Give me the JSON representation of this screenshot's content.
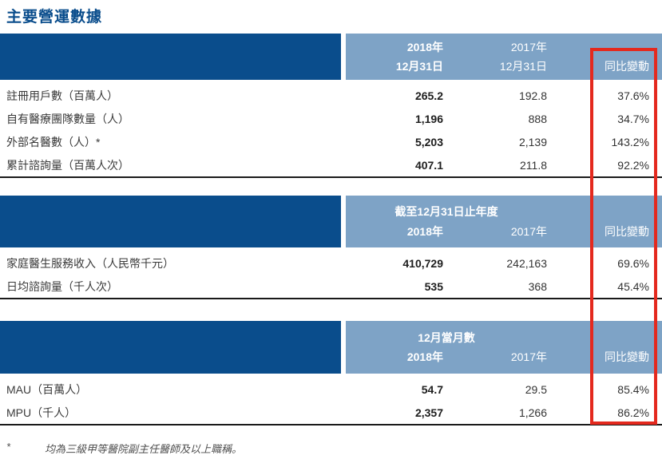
{
  "page": {
    "title": "主要營運數據",
    "footnote_marker": "*",
    "footnote_text": "均為三級甲等醫院副主任醫師及以上職稱。"
  },
  "colors": {
    "dark_blue": "#0a4d8c",
    "light_blue": "#7ea3c6",
    "highlight_red": "#e4291e"
  },
  "tables": [
    {
      "header": {
        "col1_line1": "2018年",
        "col1_line2": "12月31日",
        "col2_line1": "2017年",
        "col2_line2": "12月31日",
        "col3": "同比變動"
      },
      "rows": [
        {
          "label": "註冊用戶數（百萬人）",
          "v2018": "265.2",
          "v2017": "192.8",
          "yoy": "37.6%"
        },
        {
          "label": "自有醫療團隊數量（人）",
          "v2018": "1,196",
          "v2017": "888",
          "yoy": "34.7%"
        },
        {
          "label": "外部名醫數（人）*",
          "v2018": "5,203",
          "v2017": "2,139",
          "yoy": "143.2%"
        },
        {
          "label": "累計諮詢量（百萬人次）",
          "v2018": "407.1",
          "v2017": "211.8",
          "yoy": "92.2%"
        }
      ]
    },
    {
      "header": {
        "span_label": "截至12月31日止年度",
        "col1": "2018年",
        "col2": "2017年",
        "col3": "同比變動"
      },
      "rows": [
        {
          "label": "家庭醫生服務收入（人民幣千元）",
          "v2018": "410,729",
          "v2017": "242,163",
          "yoy": "69.6%"
        },
        {
          "label": "日均諮詢量（千人次）",
          "v2018": "535",
          "v2017": "368",
          "yoy": "45.4%"
        }
      ]
    },
    {
      "header": {
        "span_label": "12月當月數",
        "col1": "2018年",
        "col2": "2017年",
        "col3": "同比變動"
      },
      "rows": [
        {
          "label": "MAU（百萬人）",
          "v2018": "54.7",
          "v2017": "29.5",
          "yoy": "85.4%"
        },
        {
          "label": "MPU（千人）",
          "v2018": "2,357",
          "v2017": "1,266",
          "yoy": "86.2%"
        }
      ]
    }
  ]
}
